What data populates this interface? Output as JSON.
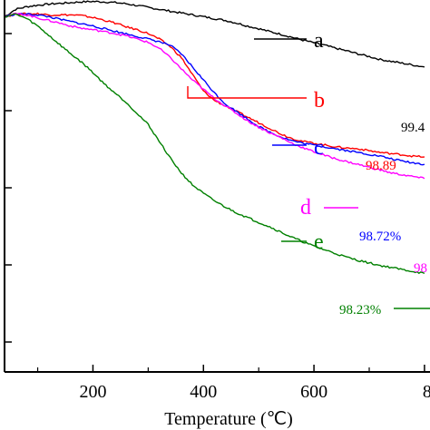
{
  "chart_data": {
    "type": "line",
    "xlabel": "Temperature (℃)",
    "ylabel": "",
    "xlim": [
      40,
      810
    ],
    "ylim": [
      0,
      100
    ],
    "x_ticks": [
      "200",
      "400",
      "600",
      "8"
    ],
    "grid": false,
    "series": [
      {
        "name": "a",
        "color": "#000000",
        "end_label": "99.4",
        "x": [
          40,
          60,
          80,
          100,
          120,
          140,
          160,
          180,
          200,
          220,
          240,
          260,
          280,
          300,
          320,
          340,
          360,
          380,
          400,
          420,
          440,
          460,
          480,
          500,
          520,
          540,
          560,
          580,
          600,
          620,
          640,
          660,
          680,
          700,
          720,
          740,
          760,
          780,
          800
        ],
        "values": [
          95.5,
          97.5,
          98.2,
          98.6,
          98.9,
          99.1,
          99.3,
          99.5,
          99.6,
          99.5,
          99.3,
          99.0,
          98.5,
          98.0,
          97.5,
          97.0,
          96.5,
          96.0,
          95.5,
          95.0,
          94.5,
          93.8,
          93.0,
          92.3,
          91.5,
          90.8,
          90.0,
          89.2,
          88.5,
          87.8,
          87.0,
          86.3,
          85.5,
          84.8,
          84.0,
          83.5,
          83.0,
          82.5,
          82.0
        ]
      },
      {
        "name": "b",
        "color": "#ff0000",
        "end_label": "98.89",
        "x": [
          40,
          60,
          80,
          100,
          120,
          140,
          160,
          180,
          200,
          220,
          240,
          260,
          280,
          300,
          320,
          340,
          360,
          380,
          400,
          420,
          440,
          460,
          480,
          500,
          520,
          540,
          560,
          580,
          600,
          620,
          640,
          660,
          680,
          700,
          720,
          740,
          760,
          780,
          800
        ],
        "values": [
          95.5,
          96.2,
          96.3,
          96.3,
          96.0,
          96.0,
          96.0,
          95.8,
          95.3,
          94.6,
          93.8,
          92.8,
          92.0,
          91.0,
          89.5,
          87.5,
          84.5,
          80.0,
          75.5,
          73.0,
          71.5,
          70.0,
          68.5,
          67.0,
          65.5,
          64.0,
          62.8,
          62.0,
          61.5,
          61.0,
          60.5,
          60.2,
          60.0,
          59.5,
          59.0,
          58.7,
          58.4,
          58.0,
          57.8
        ]
      },
      {
        "name": "c",
        "color": "#0000ff",
        "end_label": "98.72%",
        "x": [
          40,
          60,
          80,
          100,
          120,
          140,
          160,
          180,
          200,
          220,
          240,
          260,
          280,
          300,
          320,
          340,
          360,
          380,
          400,
          420,
          440,
          460,
          480,
          500,
          520,
          540,
          560,
          580,
          600,
          620,
          640,
          660,
          680,
          700,
          720,
          740,
          760,
          780,
          800
        ],
        "values": [
          95.5,
          96.2,
          96.2,
          96.0,
          95.5,
          94.8,
          94.2,
          93.6,
          93.0,
          92.3,
          91.6,
          90.9,
          90.2,
          89.5,
          88.8,
          87.8,
          85.5,
          82.0,
          78.5,
          75.0,
          72.0,
          70.0,
          68.0,
          66.0,
          64.5,
          63.2,
          62.2,
          61.5,
          61.0,
          60.5,
          60.0,
          59.5,
          59.0,
          58.5,
          58.0,
          57.3,
          56.7,
          56.2,
          55.8
        ]
      },
      {
        "name": "d",
        "color": "#ff00ff",
        "end_label": "98",
        "x": [
          40,
          60,
          80,
          100,
          120,
          140,
          160,
          180,
          200,
          220,
          240,
          260,
          280,
          300,
          320,
          340,
          360,
          380,
          400,
          420,
          440,
          460,
          480,
          500,
          520,
          540,
          560,
          580,
          600,
          620,
          640,
          660,
          680,
          700,
          720,
          740,
          760,
          780,
          800
        ],
        "values": [
          95.5,
          96.3,
          96.0,
          95.2,
          94.5,
          93.8,
          93.0,
          92.4,
          92.0,
          91.5,
          91.0,
          90.4,
          89.5,
          88.6,
          87.0,
          84.5,
          81.5,
          78.5,
          76.0,
          73.5,
          71.5,
          69.5,
          67.5,
          65.8,
          64.3,
          63.0,
          61.5,
          60.3,
          59.2,
          58.2,
          57.3,
          56.5,
          55.8,
          55.0,
          54.3,
          53.5,
          53.0,
          52.5,
          52.0
        ]
      },
      {
        "name": "e",
        "color": "#008000",
        "end_label": "98.23%",
        "x": [
          40,
          60,
          80,
          100,
          120,
          140,
          160,
          180,
          200,
          220,
          240,
          260,
          280,
          300,
          320,
          340,
          360,
          380,
          400,
          420,
          440,
          460,
          480,
          500,
          520,
          540,
          560,
          580,
          600,
          620,
          640,
          660,
          680,
          700,
          720,
          740,
          760,
          780,
          800
        ],
        "values": [
          95.5,
          96.2,
          95.0,
          93.0,
          90.5,
          88.0,
          85.5,
          83.2,
          80.5,
          77.5,
          75.0,
          72.5,
          69.5,
          66.5,
          62.0,
          57.5,
          53.5,
          50.3,
          48.0,
          46.0,
          44.3,
          42.8,
          41.5,
          40.2,
          39.0,
          37.6,
          36.2,
          35.0,
          33.8,
          32.8,
          31.8,
          30.8,
          30.0,
          29.3,
          28.6,
          28.1,
          27.5,
          27.0,
          26.5
        ]
      }
    ]
  }
}
